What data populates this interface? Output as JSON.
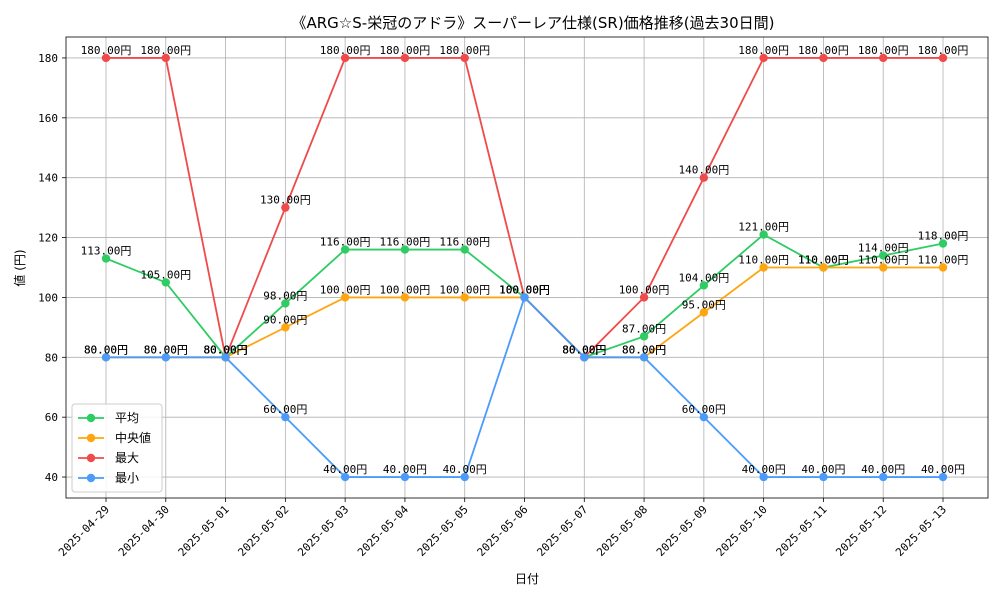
{
  "chart_data": {
    "type": "line",
    "title": "《ARG☆S-栄冠のアドラ》スーパーレア仕様(SR)価格推移(過去30日間)",
    "xlabel": "日付",
    "ylabel": "値 (円)",
    "ylim": [
      33,
      187
    ],
    "yticks": [
      40,
      60,
      80,
      100,
      120,
      140,
      160,
      180
    ],
    "ytick_labels": [
      "40",
      "60",
      "80",
      "100",
      "120",
      "140",
      "160",
      "180"
    ],
    "grid": true,
    "legend_position": "lower-left",
    "label_suffix": "円",
    "categories": [
      "2025-04-29",
      "2025-04-30",
      "2025-05-01",
      "2025-05-02",
      "2025-05-03",
      "2025-05-04",
      "2025-05-05",
      "2025-05-06",
      "2025-05-07",
      "2025-05-08",
      "2025-05-09",
      "2025-05-10",
      "2025-05-11",
      "2025-05-12",
      "2025-05-13"
    ],
    "series": [
      {
        "name": "平均",
        "color": "#2ecc63",
        "values": [
          113,
          105,
          80,
          98,
          116,
          116,
          116,
          100,
          80,
          87,
          104,
          121,
          110,
          114,
          118
        ]
      },
      {
        "name": "中央値",
        "color": "#ffa50f",
        "values": [
          80,
          80,
          80,
          90,
          100,
          100,
          100,
          100,
          80,
          80,
          95,
          110,
          110,
          110,
          110
        ]
      },
      {
        "name": "最大",
        "color": "#ef4b4b",
        "values": [
          180,
          180,
          80,
          130,
          180,
          180,
          180,
          100,
          80,
          100,
          140,
          180,
          180,
          180,
          180
        ]
      },
      {
        "name": "最小",
        "color": "#4a9bfa",
        "values": [
          80,
          80,
          80,
          60,
          40,
          40,
          40,
          100,
          80,
          80,
          60,
          40,
          40,
          40,
          40
        ]
      }
    ]
  }
}
